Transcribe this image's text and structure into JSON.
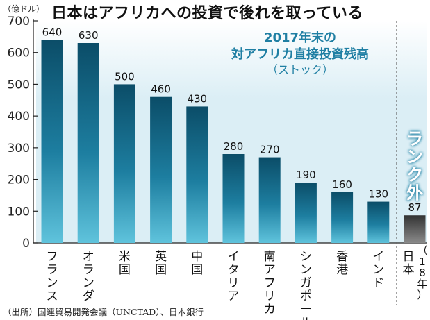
{
  "title": "日本はアフリカへの投資で後れを取っている",
  "unit_label": "（億ドル）",
  "source": "（出所）国連貿易開発会議（UNCTAD）、日本銀行",
  "annotation": {
    "lines": [
      "2017年末の",
      "対アフリカ直接投資残高",
      "（ストック）"
    ],
    "color": "#1f7fa3"
  },
  "rank_out_label": "ランク外",
  "colors": {
    "bar_top": "#0b4d68",
    "bar_mid": "#1d7ea0",
    "bar_bottom": "#5fc3dc",
    "japan_top": "#333333",
    "japan_bottom": "#8a8a8a",
    "shade": "#dbeef5",
    "divider": "#666666"
  },
  "chart_data": {
    "type": "bar",
    "categories": [
      "フランス",
      "オランダ",
      "米国",
      "英国",
      "中国",
      "イタリア",
      "南アフリカ",
      "シンガポール",
      "香港",
      "インド",
      "日本"
    ],
    "category_note": {
      "日本": "（18年）"
    },
    "values": [
      640,
      630,
      500,
      460,
      430,
      280,
      270,
      190,
      160,
      130,
      87
    ],
    "ylim": [
      0,
      700
    ],
    "yticks": [
      0,
      100,
      200,
      300,
      400,
      500,
      600,
      700
    ],
    "grid": false,
    "separated_category": "日本"
  }
}
